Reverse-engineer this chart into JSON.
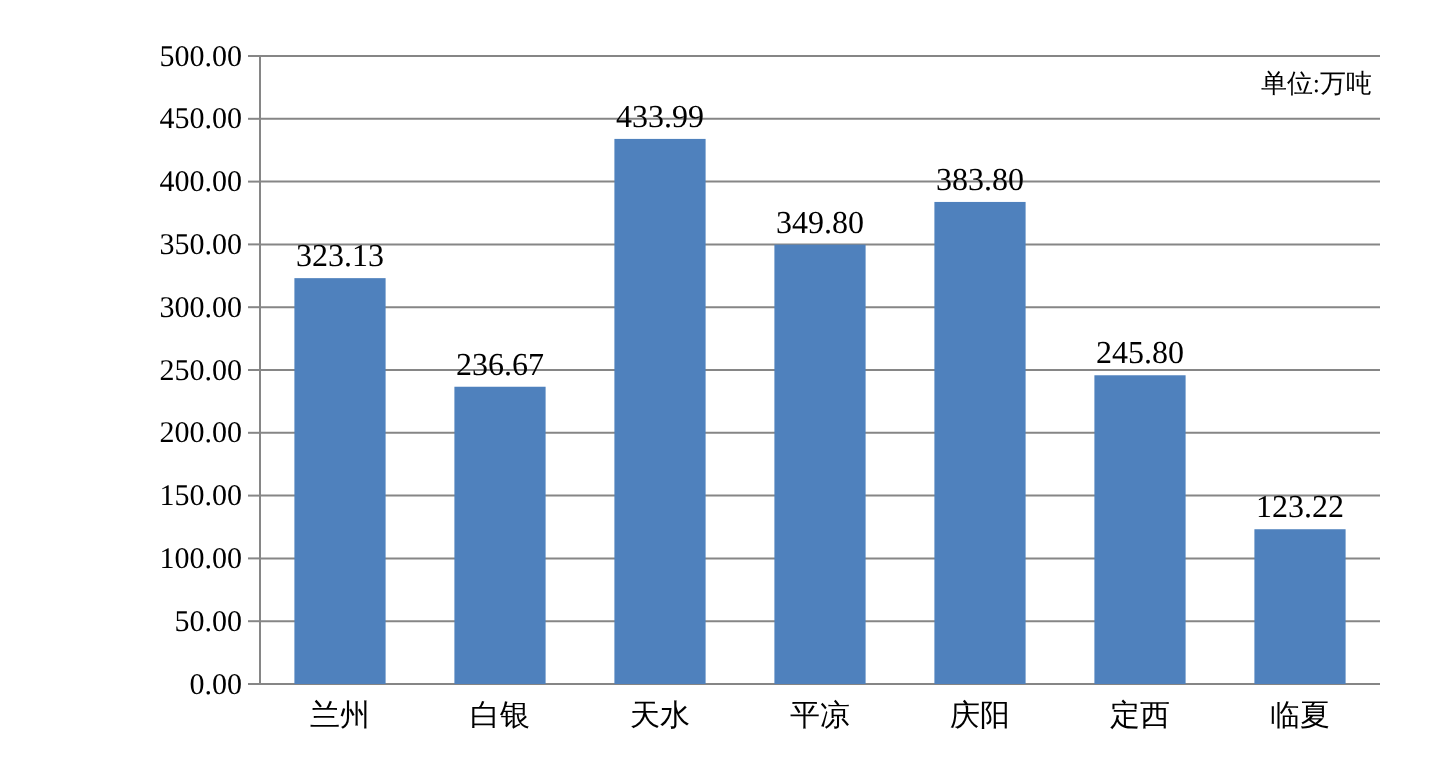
{
  "chart_data": {
    "type": "bar",
    "categories": [
      "兰州",
      "白银",
      "天水",
      "平凉",
      "庆阳",
      "定西",
      "临夏"
    ],
    "values": [
      323.13,
      236.67,
      433.99,
      349.8,
      383.8,
      245.8,
      123.22
    ],
    "value_labels": [
      "323.13",
      "236.67",
      "433.99",
      "349.80",
      "383.80",
      "245.80",
      "123.22"
    ],
    "color": "#4f81bd",
    "ylim": [
      0,
      500
    ],
    "yticks": [
      {
        "value": 0,
        "label": "0.00"
      },
      {
        "value": 50,
        "label": "50.00"
      },
      {
        "value": 100,
        "label": "100.00"
      },
      {
        "value": 150,
        "label": "150.00"
      },
      {
        "value": 200,
        "label": "200.00"
      },
      {
        "value": 250,
        "label": "250.00"
      },
      {
        "value": 300,
        "label": "300.00"
      },
      {
        "value": 350,
        "label": "350.00"
      },
      {
        "value": 400,
        "label": "400.00"
      },
      {
        "value": 450,
        "label": "450.00"
      },
      {
        "value": 500,
        "label": "500.00"
      }
    ],
    "grid": "y",
    "annotations": [
      "单位:万吨"
    ]
  }
}
